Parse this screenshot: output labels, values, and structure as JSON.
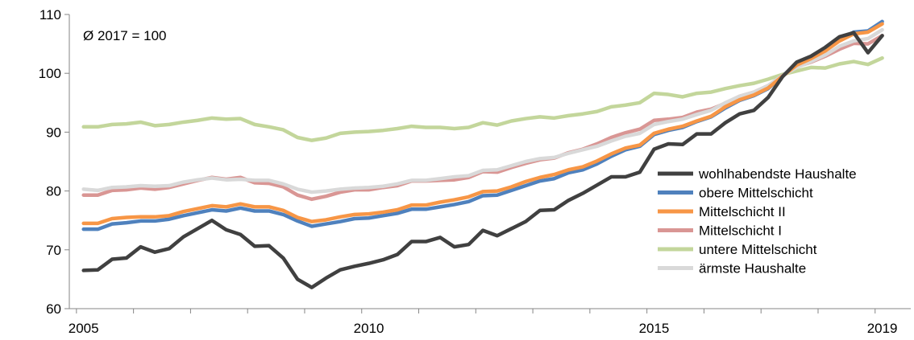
{
  "chart_data": {
    "type": "line",
    "title": "",
    "annotation": "Ø 2017 = 100",
    "xlabel": "",
    "ylabel": "",
    "ylim": [
      60,
      110
    ],
    "yticks": [
      60,
      70,
      80,
      90,
      100,
      110
    ],
    "xlim": [
      2004.875,
      2019.625
    ],
    "xticks": [
      {
        "label": "2005",
        "value": 2005.125
      },
      {
        "label": "2010",
        "value": 2010.125
      },
      {
        "label": "2015",
        "value": 2015.125
      },
      {
        "label": "2019",
        "value": 2019.125
      }
    ],
    "grid": false,
    "legend_position": "bottom-right",
    "x_start": 2005.125,
    "x_step": 0.25,
    "series": [
      {
        "name": "wohlhabendste Haushalte",
        "color": "#404040",
        "values": [
          66.5,
          66.6,
          68.4,
          68.6,
          70.5,
          69.6,
          70.2,
          72.2,
          73.6,
          75.0,
          73.4,
          72.6,
          70.6,
          70.7,
          68.6,
          65.0,
          63.6,
          65.2,
          66.6,
          67.2,
          67.7,
          68.3,
          69.2,
          71.4,
          71.4,
          72.1,
          70.5,
          70.9,
          73.3,
          72.4,
          73.6,
          74.8,
          76.7,
          76.8,
          78.4,
          79.6,
          81.0,
          82.4,
          82.4,
          83.2,
          87.1,
          88.0,
          87.9,
          89.7,
          89.7,
          91.6,
          93.1,
          93.7,
          95.9,
          99.4,
          101.9,
          102.9,
          104.4,
          106.2,
          106.9,
          103.5,
          106.4
        ]
      },
      {
        "name": "obere Mittelschicht",
        "color": "#4F81BD",
        "values": [
          73.5,
          73.5,
          74.4,
          74.6,
          74.9,
          74.9,
          75.2,
          75.8,
          76.3,
          76.8,
          76.6,
          77.1,
          76.6,
          76.6,
          76.0,
          74.9,
          74.0,
          74.4,
          74.8,
          75.3,
          75.4,
          75.8,
          76.2,
          76.9,
          76.9,
          77.3,
          77.7,
          78.2,
          79.2,
          79.3,
          80.1,
          80.9,
          81.7,
          82.1,
          83.1,
          83.6,
          84.6,
          85.9,
          87.0,
          87.6,
          89.6,
          90.3,
          90.8,
          91.8,
          92.6,
          94.1,
          95.4,
          96.2,
          97.4,
          99.5,
          101.6,
          102.6,
          104.1,
          105.7,
          107.0,
          107.2,
          108.8
        ]
      },
      {
        "name": "Mittelschicht II",
        "color": "#F79646",
        "values": [
          74.5,
          74.5,
          75.3,
          75.5,
          75.6,
          75.6,
          75.8,
          76.5,
          77.0,
          77.5,
          77.3,
          77.8,
          77.3,
          77.3,
          76.7,
          75.5,
          74.8,
          75.1,
          75.6,
          76.0,
          76.1,
          76.4,
          76.8,
          77.6,
          77.6,
          78.1,
          78.5,
          79.0,
          79.9,
          80.0,
          80.7,
          81.6,
          82.3,
          82.8,
          83.6,
          84.1,
          85.1,
          86.3,
          87.3,
          87.8,
          89.8,
          90.5,
          91.0,
          91.9,
          92.7,
          94.3,
          95.5,
          96.3,
          97.5,
          99.5,
          101.4,
          102.5,
          103.8,
          105.5,
          106.7,
          107.0,
          108.4
        ]
      },
      {
        "name": "Mittelschicht I",
        "color": "#D99694",
        "values": [
          79.3,
          79.3,
          80.1,
          80.2,
          80.5,
          80.3,
          80.6,
          81.2,
          81.8,
          82.3,
          82.0,
          82.3,
          81.4,
          81.3,
          80.7,
          79.3,
          78.6,
          79.1,
          79.8,
          80.2,
          80.2,
          80.6,
          80.9,
          81.7,
          81.7,
          81.8,
          81.9,
          82.3,
          83.3,
          83.2,
          84.0,
          84.7,
          85.3,
          85.6,
          86.5,
          87.1,
          88.0,
          89.1,
          89.9,
          90.5,
          92.0,
          92.2,
          92.5,
          93.4,
          93.9,
          94.9,
          96.1,
          96.8,
          97.9,
          99.6,
          101.1,
          101.9,
          102.9,
          104.1,
          105.1,
          105.0,
          106.4
        ]
      },
      {
        "name": "untere Mittelschicht",
        "color": "#C3D69B",
        "values": [
          90.9,
          90.9,
          91.3,
          91.4,
          91.7,
          91.1,
          91.3,
          91.7,
          92.0,
          92.4,
          92.2,
          92.3,
          91.3,
          90.9,
          90.4,
          89.1,
          88.6,
          89.0,
          89.8,
          90.0,
          90.1,
          90.3,
          90.6,
          91.0,
          90.8,
          90.8,
          90.6,
          90.8,
          91.6,
          91.2,
          91.9,
          92.3,
          92.6,
          92.4,
          92.8,
          93.1,
          93.5,
          94.3,
          94.6,
          95.0,
          96.6,
          96.4,
          96.0,
          96.6,
          96.8,
          97.4,
          97.9,
          98.3,
          99.0,
          99.8,
          100.4,
          101.0,
          100.9,
          101.6,
          102.0,
          101.5,
          102.6
        ]
      },
      {
        "name": "ärmste Haushalte",
        "color": "#D9D9D9",
        "values": [
          80.3,
          80.1,
          80.6,
          80.7,
          80.9,
          80.8,
          80.9,
          81.5,
          81.9,
          82.2,
          81.9,
          82.0,
          81.8,
          81.8,
          81.2,
          80.3,
          79.8,
          80.0,
          80.3,
          80.5,
          80.6,
          80.8,
          81.2,
          81.8,
          81.8,
          82.1,
          82.4,
          82.6,
          83.5,
          83.6,
          84.3,
          85.0,
          85.5,
          85.7,
          86.4,
          87.0,
          87.6,
          88.5,
          89.3,
          89.8,
          91.3,
          91.8,
          92.2,
          93.0,
          93.7,
          95.0,
          96.1,
          96.8,
          97.9,
          99.6,
          101.0,
          102.0,
          103.1,
          104.6,
          105.5,
          105.9,
          107.4
        ]
      }
    ]
  }
}
